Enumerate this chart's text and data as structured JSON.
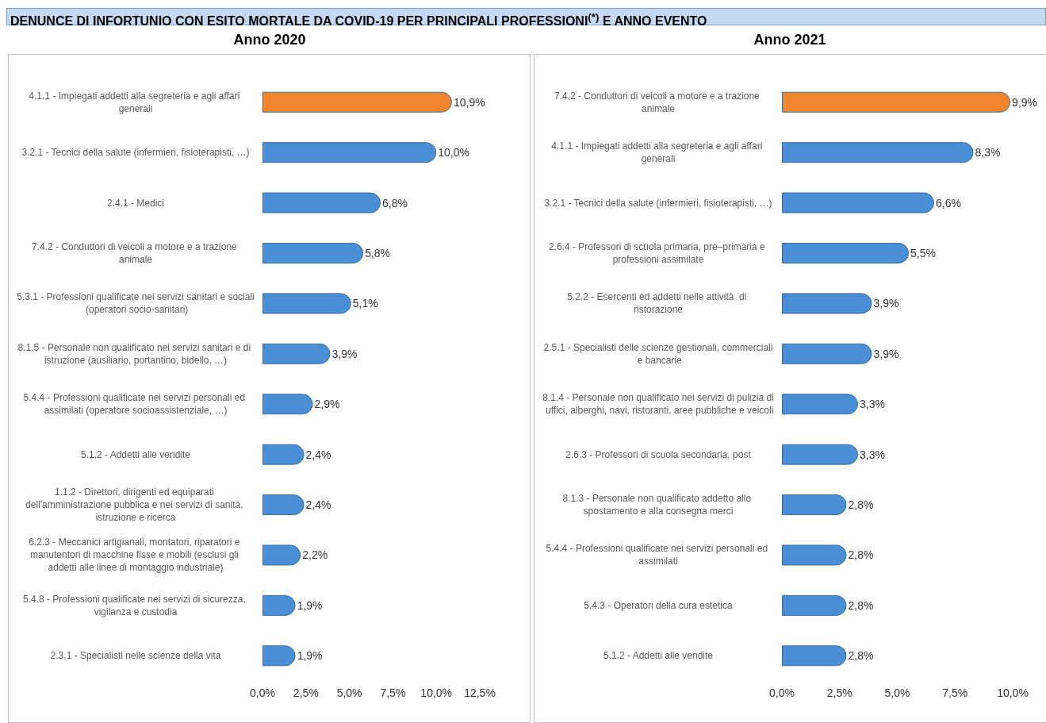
{
  "chart_data": [
    {
      "type": "bar",
      "orientation": "horizontal",
      "title": "DENUNCE DI INFORTUNIO CON ESITO MORTALE DA COVID-19 PER PRINCIPALI PROFESSIONI$^{(*)}$ E ANNO EVENTO",
      "subtitle": "Anno 2020",
      "categories": [
        "4.1.1 - Impiegati addetti alla segreteria e agli affari generali",
        "3.2.1 - Tecnici della salute (infermieri, fisioterapisti, …)",
        "2.4.1 - Medici",
        "7.4.2 - Conduttori di veicoli a motore e a trazione animale",
        "5.3.1 - Professioni qualificate nei servizi sanitari e sociali (operatori socio-sanitari)",
        "8.1.5 - Personale non qualificato nei servizi sanitari e di istruzione (ausiliario, portantino, bidello, …)",
        "5.4.4 - Professioni qualificate nei servizi personali ed assimilati (operatore socioassistenziale, …)",
        "5.1.2 - Addetti alle vendite",
        "1.1.2 - Direttori, dirigenti ed equiparati dell'amministrazione pubblica e nei servizi di sanità, istruzione e ricerca",
        "6.2.3 - Meccanici artigianali, montatori, riparatori e manutentori di macchine fisse e mobili (esclusi gli addetti alle linee di montaggio industriale)",
        "5.4.8 - Professioni qualificate nei servizi di sicurezza, vigilanza e custodia",
        "2.3.1 - Specialisti nelle scienze della vita"
      ],
      "values": [
        10.9,
        10.0,
        6.8,
        5.8,
        5.1,
        3.9,
        2.9,
        2.4,
        2.4,
        2.2,
        1.9,
        1.9
      ],
      "value_labels": [
        "10,9%",
        "10,0%",
        "6,8%",
        "5,8%",
        "5,1%",
        "3,9%",
        "2,9%",
        "2,4%",
        "2,4%",
        "2,2%",
        "1,9%",
        "1,9%"
      ],
      "colors": [
        "#f0852d",
        "#4a8ed6",
        "#4a8ed6",
        "#4a8ed6",
        "#4a8ed6",
        "#4a8ed6",
        "#4a8ed6",
        "#4a8ed6",
        "#4a8ed6",
        "#4a8ed6",
        "#4a8ed6",
        "#4a8ed6"
      ],
      "xlim": [
        0,
        12.5
      ],
      "xticks": [
        {
          "value": 0,
          "label": "0,0%"
        },
        {
          "value": 2.5,
          "label": "2,5%"
        },
        {
          "value": 5,
          "label": "5,0%"
        },
        {
          "value": 7.5,
          "label": "7,5%"
        },
        {
          "value": 10,
          "label": "10,0%"
        },
        {
          "value": 12.5,
          "label": "12,5%"
        }
      ]
    },
    {
      "type": "bar",
      "orientation": "horizontal",
      "subtitle": "Anno 2021",
      "categories": [
        "7.4.2 - Conduttori di veicoli a motore e a trazione animale",
        "4.1.1 - Impiegati addetti alla segreteria e agli affari generali",
        "3.2.1 - Tecnici della salute (infermieri, fisioterapisti, …)",
        "2.6.4 - Professori di scuola primaria, pre–primaria e professioni assimilate",
        "5.2.2 - Esercenti ed addetti nelle attività  di ristorazione",
        "2.5.1 - Specialisti delle scienze gestionali, commerciali e bancarie",
        "8.1.4 - Personale non qualificato nei servizi di pulizia di uffici, alberghi, navi, ristoranti, aree pubbliche e veicoli",
        "2.6.3 - Professori di scuola secondaria, post",
        "8.1.3 - Personale non qualificato addetto allo spostamento e alla consegna merci",
        "5.4.4 - Professioni qualificate nei servizi personali ed assimilati",
        "5.4.3 - Operatori della cura estetica",
        "5.1.2 - Addetti alle vendite"
      ],
      "values": [
        9.9,
        8.3,
        6.6,
        5.5,
        3.9,
        3.9,
        3.3,
        3.3,
        2.8,
        2.8,
        2.8,
        2.8
      ],
      "value_labels": [
        "9,9%",
        "8,3%",
        "6,6%",
        "5,5%",
        "3,9%",
        "3,9%",
        "3,3%",
        "3,3%",
        "2,8%",
        "2,8%",
        "2,8%",
        "2,8%"
      ],
      "colors": [
        "#f0852d",
        "#4a8ed6",
        "#4a8ed6",
        "#4a8ed6",
        "#4a8ed6",
        "#4a8ed6",
        "#4a8ed6",
        "#4a8ed6",
        "#4a8ed6",
        "#4a8ed6",
        "#4a8ed6",
        "#4a8ed6"
      ],
      "xlim": [
        0,
        10
      ],
      "xticks": [
        {
          "value": 0,
          "label": "0,0%"
        },
        {
          "value": 2.5,
          "label": "2,5%"
        },
        {
          "value": 5,
          "label": "5,0%"
        },
        {
          "value": 7.5,
          "label": "7,5%"
        },
        {
          "value": 10,
          "label": "10,0%"
        }
      ]
    }
  ]
}
